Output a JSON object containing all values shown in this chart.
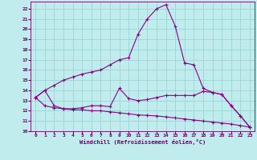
{
  "background_color": "#c0ecee",
  "grid_color": "#a0d8da",
  "line_color": "#880088",
  "xlabel": "Windchill (Refroidissement éolien,°C)",
  "xlabel_color": "#660066",
  "tick_color": "#660066",
  "xlim": [
    -0.5,
    23.5
  ],
  "ylim": [
    10,
    22.7
  ],
  "xticks": [
    0,
    1,
    2,
    3,
    4,
    5,
    6,
    7,
    8,
    9,
    10,
    11,
    12,
    13,
    14,
    15,
    16,
    17,
    18,
    19,
    20,
    21,
    22,
    23
  ],
  "yticks": [
    10,
    11,
    12,
    13,
    14,
    15,
    16,
    17,
    18,
    19,
    20,
    21,
    22
  ],
  "line1_x": [
    0,
    1,
    2,
    3,
    4,
    5,
    6,
    7,
    8,
    9,
    10,
    11,
    12,
    13,
    14,
    15,
    16,
    17,
    18,
    19,
    20,
    21,
    22,
    23
  ],
  "line1_y": [
    13.3,
    14.0,
    14.5,
    15.0,
    15.3,
    15.6,
    15.8,
    16.0,
    16.5,
    17.0,
    17.2,
    19.5,
    21.0,
    22.0,
    22.4,
    20.3,
    16.7,
    16.5,
    14.2,
    13.8,
    13.6,
    12.5,
    11.5,
    10.4
  ],
  "line2_x": [
    0,
    1,
    2,
    3,
    4,
    5,
    6,
    7,
    8,
    9,
    10,
    11,
    12,
    13,
    14,
    15,
    16,
    17,
    18,
    19,
    20,
    21,
    22,
    23
  ],
  "line2_y": [
    13.3,
    14.0,
    12.5,
    12.2,
    12.2,
    12.3,
    12.5,
    12.5,
    12.4,
    14.2,
    13.2,
    13.0,
    13.1,
    13.3,
    13.5,
    13.5,
    13.5,
    13.5,
    13.9,
    13.8,
    13.6,
    12.5,
    11.5,
    10.4
  ],
  "line3_x": [
    0,
    1,
    2,
    3,
    4,
    5,
    6,
    7,
    8,
    9,
    10,
    11,
    12,
    13,
    14,
    15,
    16,
    17,
    18,
    19,
    20,
    21,
    22,
    23
  ],
  "line3_y": [
    13.3,
    12.5,
    12.3,
    12.2,
    12.1,
    12.1,
    12.0,
    12.0,
    11.9,
    11.8,
    11.7,
    11.6,
    11.55,
    11.5,
    11.4,
    11.3,
    11.2,
    11.1,
    11.0,
    10.9,
    10.8,
    10.7,
    10.55,
    10.4
  ]
}
